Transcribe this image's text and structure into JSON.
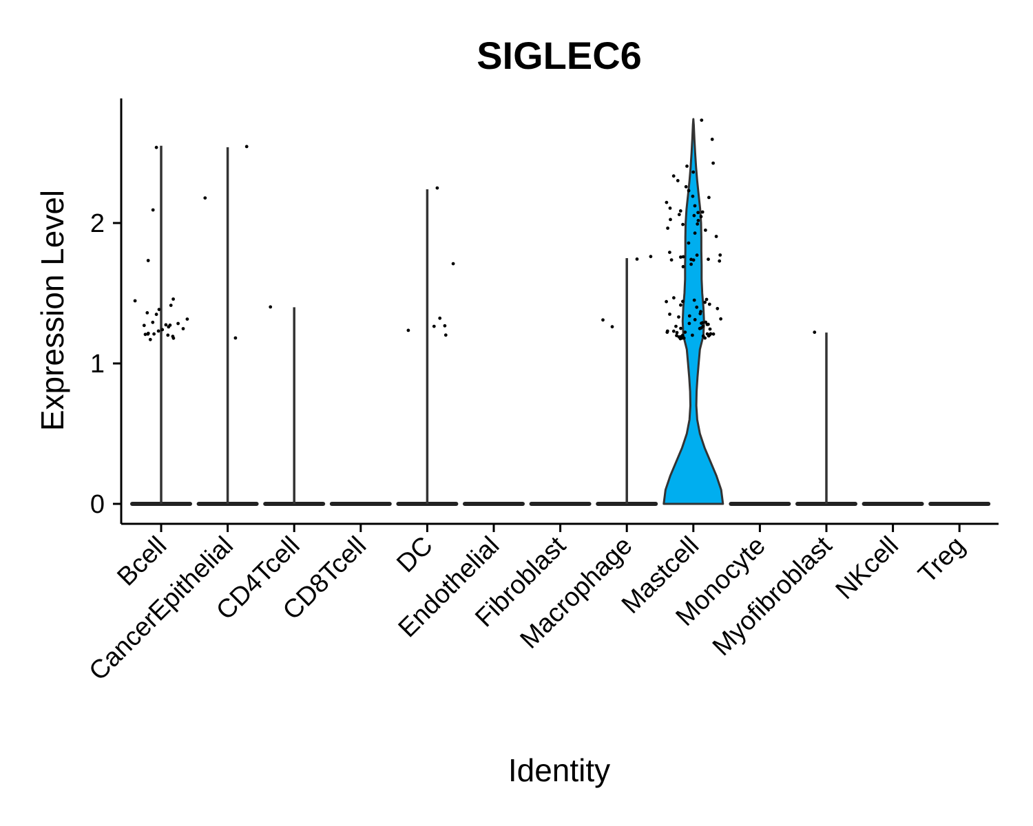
{
  "chart_data": {
    "type": "violin",
    "title": "SIGLEC6",
    "xlabel": "Identity",
    "ylabel": "Expression Level",
    "ylim": [
      -0.14,
      2.88
    ],
    "yticks": [
      0,
      1,
      2
    ],
    "grid": false,
    "legend": "none",
    "fill_color": "#00AEEF",
    "categories": [
      "Bcell",
      "CancerEpithelial",
      "CD4Tcell",
      "CD8Tcell",
      "DC",
      "Endothelial",
      "Fibroblast",
      "Macrophage",
      "Mastcell",
      "Monocyte",
      "Myofibroblast",
      "NKcell",
      "Treg"
    ],
    "violin_max": [
      2.55,
      2.54,
      1.4,
      0.0,
      2.24,
      0.0,
      0.0,
      1.75,
      2.74,
      0.0,
      1.22,
      0.0,
      0.0
    ],
    "mastcell_density": [
      [
        0.0,
        1.0
      ],
      [
        0.1,
        0.94
      ],
      [
        0.2,
        0.78
      ],
      [
        0.3,
        0.58
      ],
      [
        0.4,
        0.38
      ],
      [
        0.5,
        0.22
      ],
      [
        0.6,
        0.13
      ],
      [
        0.7,
        0.1
      ],
      [
        0.8,
        0.11
      ],
      [
        0.9,
        0.14
      ],
      [
        1.0,
        0.18
      ],
      [
        1.1,
        0.22
      ],
      [
        1.2,
        0.34
      ],
      [
        1.3,
        0.36
      ],
      [
        1.4,
        0.34
      ],
      [
        1.5,
        0.3
      ],
      [
        1.6,
        0.28
      ],
      [
        1.7,
        0.28
      ],
      [
        1.8,
        0.27
      ],
      [
        1.9,
        0.27
      ],
      [
        2.0,
        0.26
      ],
      [
        2.1,
        0.23
      ],
      [
        2.2,
        0.18
      ],
      [
        2.3,
        0.13
      ],
      [
        2.4,
        0.09
      ],
      [
        2.5,
        0.06
      ],
      [
        2.6,
        0.035
      ],
      [
        2.7,
        0.015
      ],
      [
        2.74,
        0.0
      ]
    ],
    "points": [
      {
        "group": "Bcell",
        "values": [
          2.55,
          2.1,
          1.74,
          1.47,
          1.45,
          1.42,
          1.38,
          1.36,
          1.35,
          1.32,
          1.3,
          1.29,
          1.28,
          1.27,
          1.26,
          1.25,
          1.25,
          1.24,
          1.23,
          1.22,
          1.22,
          1.21,
          1.2,
          1.2,
          1.19,
          1.19,
          1.18
        ]
      },
      {
        "group": "CancerEpithelial",
        "values": [
          2.54,
          2.17,
          1.19
        ]
      },
      {
        "group": "CD4Tcell",
        "values": [
          1.4
        ]
      },
      {
        "group": "DC",
        "values": [
          2.24,
          1.72,
          1.33,
          1.28,
          1.27,
          1.23,
          1.2
        ]
      },
      {
        "group": "Macrophage",
        "values": [
          1.75,
          1.74,
          1.3,
          1.26
        ]
      },
      {
        "group": "Mastcell",
        "values": [
          2.74,
          2.6,
          2.43,
          2.4,
          2.37,
          2.33,
          2.3,
          2.25,
          2.22,
          2.2,
          2.18,
          2.15,
          2.12,
          2.1,
          2.09,
          2.08,
          2.07,
          2.06,
          2.05,
          2.04,
          2.03,
          2.02,
          2.0,
          1.98,
          1.97,
          1.95,
          1.93,
          1.9,
          1.85,
          1.8,
          1.78,
          1.77,
          1.76,
          1.75,
          1.75,
          1.74,
          1.74,
          1.73,
          1.72,
          1.7,
          1.68,
          1.46,
          1.45,
          1.45,
          1.44,
          1.43,
          1.43,
          1.42,
          1.42,
          1.41,
          1.4,
          1.38,
          1.36,
          1.35,
          1.34,
          1.33,
          1.32,
          1.31,
          1.3,
          1.29,
          1.29,
          1.28,
          1.28,
          1.27,
          1.27,
          1.26,
          1.26,
          1.25,
          1.25,
          1.24,
          1.24,
          1.23,
          1.23,
          1.22,
          1.22,
          1.22,
          1.21,
          1.21,
          1.21,
          1.2,
          1.2,
          1.2,
          1.2,
          1.19,
          1.19,
          1.19,
          1.19,
          1.18,
          1.18,
          1.18
        ]
      },
      {
        "group": "Myofibroblast",
        "values": [
          1.22
        ]
      }
    ]
  }
}
